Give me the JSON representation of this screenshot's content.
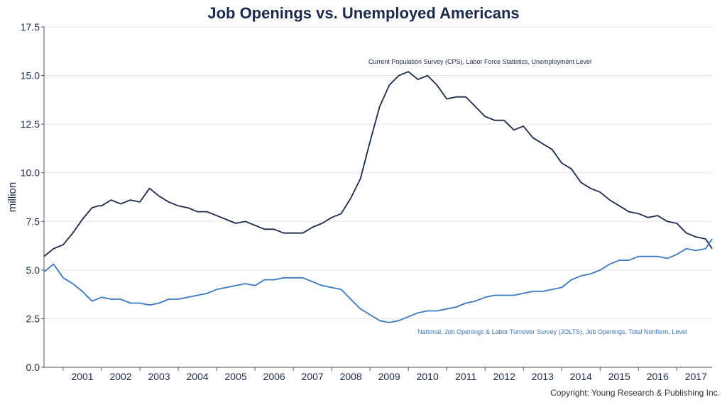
{
  "chart_data": {
    "type": "line",
    "title": "Job Openings vs. Unemployed Americans",
    "ylabel": "million",
    "ylim": [
      0,
      17.5
    ],
    "yticks": [
      "0.0",
      "2.5",
      "5.0",
      "7.5",
      "10.0",
      "12.5",
      "15.0",
      "17.5"
    ],
    "xlim": [
      2000.5,
      2017.92
    ],
    "xticks": [
      "2001",
      "2002",
      "2003",
      "2004",
      "2005",
      "2006",
      "2007",
      "2008",
      "2009",
      "2010",
      "2011",
      "2012",
      "2013",
      "2014",
      "2015",
      "2016",
      "2017"
    ],
    "grid": true,
    "series": [
      {
        "name": "Current Population Survey (CPS), Labor Force Statistics, Unemployment Level",
        "color": "#1b2a4a",
        "x": [
          2000.5,
          2000.75,
          2001.0,
          2001.25,
          2001.5,
          2001.75,
          2001.92,
          2002.0,
          2002.25,
          2002.5,
          2002.75,
          2003.0,
          2003.25,
          2003.5,
          2003.75,
          2004.0,
          2004.25,
          2004.5,
          2004.75,
          2005.0,
          2005.25,
          2005.5,
          2005.75,
          2006.0,
          2006.25,
          2006.5,
          2006.75,
          2007.0,
          2007.25,
          2007.5,
          2007.75,
          2008.0,
          2008.25,
          2008.5,
          2008.75,
          2009.0,
          2009.25,
          2009.5,
          2009.75,
          2010.0,
          2010.25,
          2010.5,
          2010.75,
          2011.0,
          2011.25,
          2011.5,
          2011.75,
          2012.0,
          2012.25,
          2012.5,
          2012.75,
          2013.0,
          2013.25,
          2013.5,
          2013.75,
          2014.0,
          2014.25,
          2014.5,
          2014.75,
          2015.0,
          2015.25,
          2015.5,
          2015.75,
          2016.0,
          2016.25,
          2016.5,
          2016.75,
          2017.0,
          2017.25,
          2017.5,
          2017.75,
          2017.92
        ],
        "y": [
          5.7,
          6.1,
          6.3,
          6.9,
          7.6,
          8.2,
          8.3,
          8.3,
          8.6,
          8.4,
          8.6,
          8.5,
          9.2,
          8.8,
          8.5,
          8.3,
          8.2,
          8.0,
          8.0,
          7.8,
          7.6,
          7.4,
          7.5,
          7.3,
          7.1,
          7.1,
          6.9,
          6.9,
          6.9,
          7.2,
          7.4,
          7.7,
          7.9,
          8.7,
          9.7,
          11.6,
          13.4,
          14.5,
          15.0,
          15.2,
          14.8,
          15.0,
          14.5,
          13.8,
          13.9,
          13.9,
          13.4,
          12.9,
          12.7,
          12.7,
          12.2,
          12.4,
          11.8,
          11.5,
          11.2,
          10.5,
          10.2,
          9.5,
          9.2,
          9.0,
          8.6,
          8.3,
          8.0,
          7.9,
          7.7,
          7.8,
          7.5,
          7.4,
          6.9,
          6.7,
          6.6,
          6.1
        ]
      },
      {
        "name": "National, Job Openings & Labor Turnover Survey (JOLTS), Job Openings, Total Nonfarm, Level",
        "color": "#3a78c0",
        "x": [
          2000.5,
          2000.75,
          2001.0,
          2001.25,
          2001.5,
          2001.75,
          2002.0,
          2002.25,
          2002.5,
          2002.75,
          2003.0,
          2003.25,
          2003.5,
          2003.75,
          2004.0,
          2004.25,
          2004.5,
          2004.75,
          2005.0,
          2005.25,
          2005.5,
          2005.75,
          2006.0,
          2006.25,
          2006.5,
          2006.75,
          2007.0,
          2007.25,
          2007.5,
          2007.75,
          2008.0,
          2008.25,
          2008.5,
          2008.75,
          2009.0,
          2009.25,
          2009.5,
          2009.75,
          2010.0,
          2010.25,
          2010.5,
          2010.75,
          2011.0,
          2011.25,
          2011.5,
          2011.75,
          2012.0,
          2012.25,
          2012.5,
          2012.75,
          2013.0,
          2013.25,
          2013.5,
          2013.75,
          2014.0,
          2014.25,
          2014.5,
          2014.75,
          2015.0,
          2015.25,
          2015.5,
          2015.75,
          2016.0,
          2016.25,
          2016.5,
          2016.75,
          2017.0,
          2017.25,
          2017.5,
          2017.75,
          2017.92
        ],
        "y": [
          4.9,
          5.3,
          4.6,
          4.3,
          3.9,
          3.4,
          3.6,
          3.5,
          3.5,
          3.3,
          3.3,
          3.2,
          3.3,
          3.5,
          3.5,
          3.6,
          3.7,
          3.8,
          4.0,
          4.1,
          4.2,
          4.3,
          4.2,
          4.5,
          4.5,
          4.6,
          4.6,
          4.6,
          4.4,
          4.2,
          4.1,
          4.0,
          3.5,
          3.0,
          2.7,
          2.4,
          2.3,
          2.4,
          2.6,
          2.8,
          2.9,
          2.9,
          3.0,
          3.1,
          3.3,
          3.4,
          3.6,
          3.7,
          3.7,
          3.7,
          3.8,
          3.9,
          3.9,
          4.0,
          4.1,
          4.5,
          4.7,
          4.8,
          5.0,
          5.3,
          5.5,
          5.5,
          5.7,
          5.7,
          5.7,
          5.6,
          5.8,
          6.1,
          6.0,
          6.1,
          6.6
        ]
      }
    ],
    "annotations": [
      "Current Population Survey (CPS), Labor Force Statistics, Unemployment Level",
      "National, Job Openings & Labor Turnover Survey (JOLTS), Job Openings, Total Nonfarm, Level"
    ],
    "copyright": "Copyright: Young Research & Publishing Inc."
  }
}
